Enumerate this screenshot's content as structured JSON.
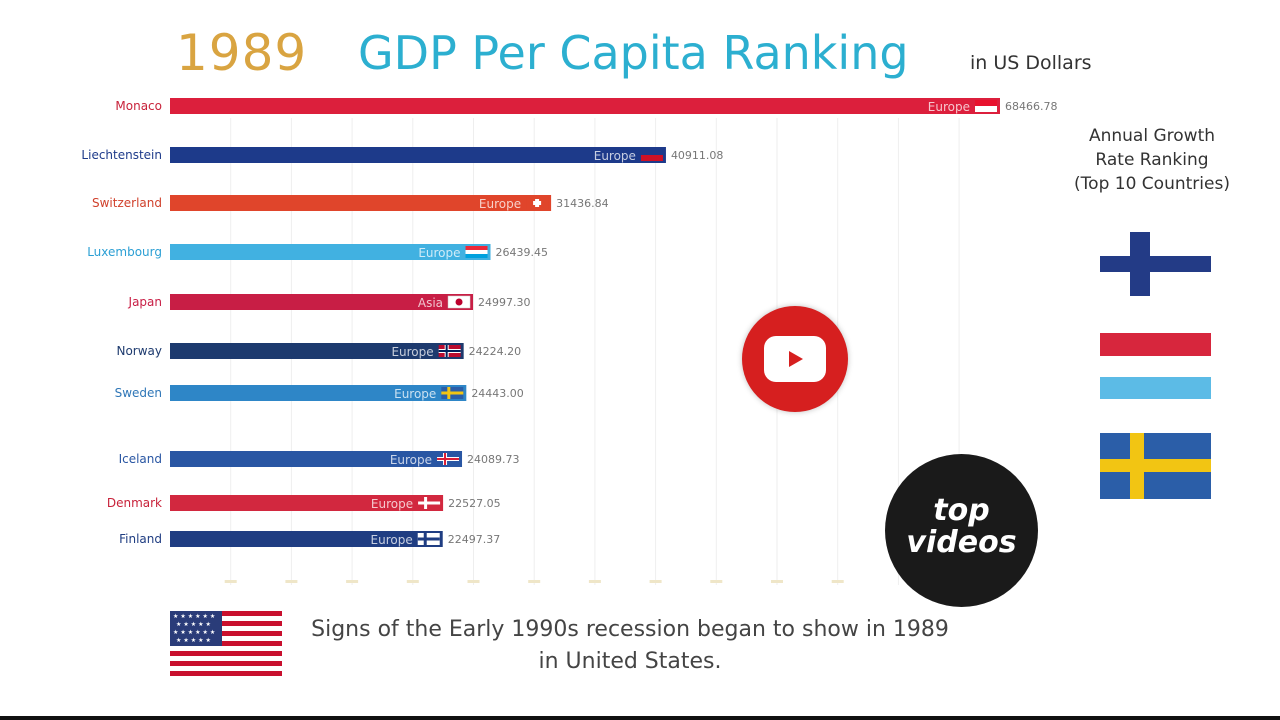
{
  "header": {
    "year": "1989",
    "title": "GDP Per Capita Ranking",
    "units": "in US Dollars"
  },
  "colors": {
    "title": "#2cafd0",
    "year": "#d9a441",
    "grid": "#eeeeee"
  },
  "chart_data": {
    "type": "bar",
    "orientation": "horizontal",
    "xlim": [
      0,
      68466.78
    ],
    "grid": true,
    "categories": [
      "Monaco",
      "Liechtenstein",
      "Switzerland",
      "Luxembourg",
      "Japan",
      "Norway",
      "Sweden",
      "Iceland",
      "Denmark",
      "Finland"
    ],
    "values": [
      68466.78,
      40911.08,
      31436.84,
      26439.45,
      24997.3,
      24224.2,
      24443.0,
      24089.73,
      22527.05,
      22497.37
    ],
    "value_labels": [
      "68466.78",
      "40911.08",
      "31436.84",
      "26439.45",
      "24997.30",
      "24224.20",
      "24443.00",
      "24089.73",
      "22527.05",
      "22497.37"
    ],
    "regions": [
      "Europe",
      "Europe",
      "Europe",
      "Europe",
      "Asia",
      "Europe",
      "Europe",
      "Europe",
      "Europe",
      "Europe"
    ],
    "bar_colors": [
      "#dc1f3c",
      "#1d3a8a",
      "#e0452b",
      "#41b1e1",
      "#c81e45",
      "#1d3a6e",
      "#2e86c7",
      "#2956a3",
      "#d2283f",
      "#1f3d82"
    ],
    "label_colors": [
      "#c8223a",
      "#1d3a8a",
      "#d0402b",
      "#2b9fd4",
      "#c81e45",
      "#1d3a6e",
      "#2e76b7",
      "#2956a3",
      "#c8223a",
      "#1f3d82"
    ],
    "flag_icons": [
      "monaco-flag-icon",
      "liechtenstein-flag-icon",
      "switzerland-flag-icon",
      "luxembourg-flag-icon",
      "japan-flag-icon",
      "norway-flag-icon",
      "sweden-flag-icon",
      "iceland-flag-icon",
      "denmark-flag-icon",
      "finland-flag-icon"
    ]
  },
  "side_panel": {
    "title_line1": "Annual Growth",
    "title_line2": "Rate Ranking",
    "title_line3": "(Top 10 Countries)",
    "flag_icons": [
      "finland-flag-icon",
      "red-flag-icon",
      "luxembourg-stripe-flag-icon",
      "sweden-flag-icon"
    ]
  },
  "logos": {
    "play_icon": "youtube-play-icon",
    "brand_line1": "top",
    "brand_line2": "videos"
  },
  "caption": {
    "line1": "Signs of the Early 1990s recession began to show in 1989",
    "line2": "in United States.",
    "flag_icon": "united-states-flag-icon"
  }
}
